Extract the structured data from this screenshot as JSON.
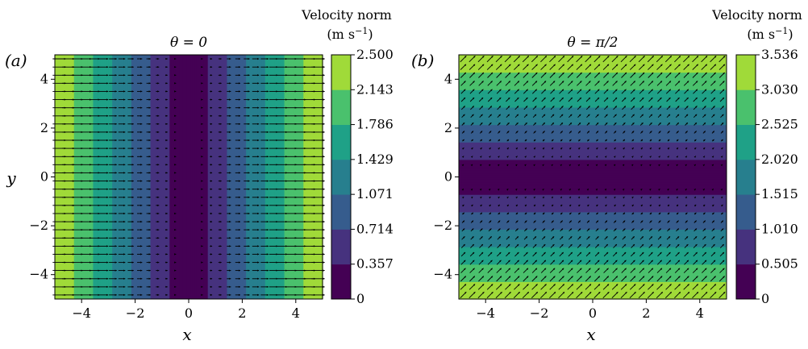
{
  "chart_data": [
    {
      "type": "contour",
      "panel_label": "(a)",
      "title": "θ = 0",
      "xlabel": "x",
      "ylabel": "y",
      "xlim": [
        -5,
        5
      ],
      "ylim": [
        -5,
        5
      ],
      "xticks": [
        "−4",
        "−2",
        "0",
        "2",
        "4"
      ],
      "yticks": [
        "−4",
        "−2",
        "0",
        "2",
        "4"
      ],
      "field": "|x|/2",
      "direction": "+x",
      "colormap": "viridis",
      "colorbar": {
        "label_line1": "Velocity norm",
        "label_line2": "(m s",
        "label_sup": "−1",
        "label_end": ")",
        "levels": [
          0,
          0.357,
          0.714,
          1.071,
          1.429,
          1.786,
          2.143,
          2.5
        ],
        "tick_labels": [
          "0",
          "0.357",
          "0.714",
          "1.071",
          "1.429",
          "1.786",
          "2.143",
          "2.500"
        ]
      }
    },
    {
      "type": "contour",
      "panel_label": "(b)",
      "title": "θ = π/2",
      "xlabel": "x",
      "ylabel": "",
      "xlim": [
        -5,
        5
      ],
      "ylim": [
        -5,
        5
      ],
      "xticks": [
        "−4",
        "−2",
        "0",
        "2",
        "4"
      ],
      "yticks": [
        "−4",
        "−2",
        "0",
        "2",
        "4"
      ],
      "field": "|y|/√2",
      "direction": "45°",
      "colormap": "viridis",
      "colorbar": {
        "label_line1": "Velocity norm",
        "label_line2": "(m s",
        "label_sup": "−1",
        "label_end": ")",
        "levels": [
          0,
          0.505,
          1.01,
          1.515,
          2.02,
          2.525,
          3.03,
          3.536
        ],
        "tick_labels": [
          "0",
          "0.505",
          "1.010",
          "1.515",
          "2.020",
          "2.525",
          "3.030",
          "3.536"
        ]
      }
    }
  ]
}
